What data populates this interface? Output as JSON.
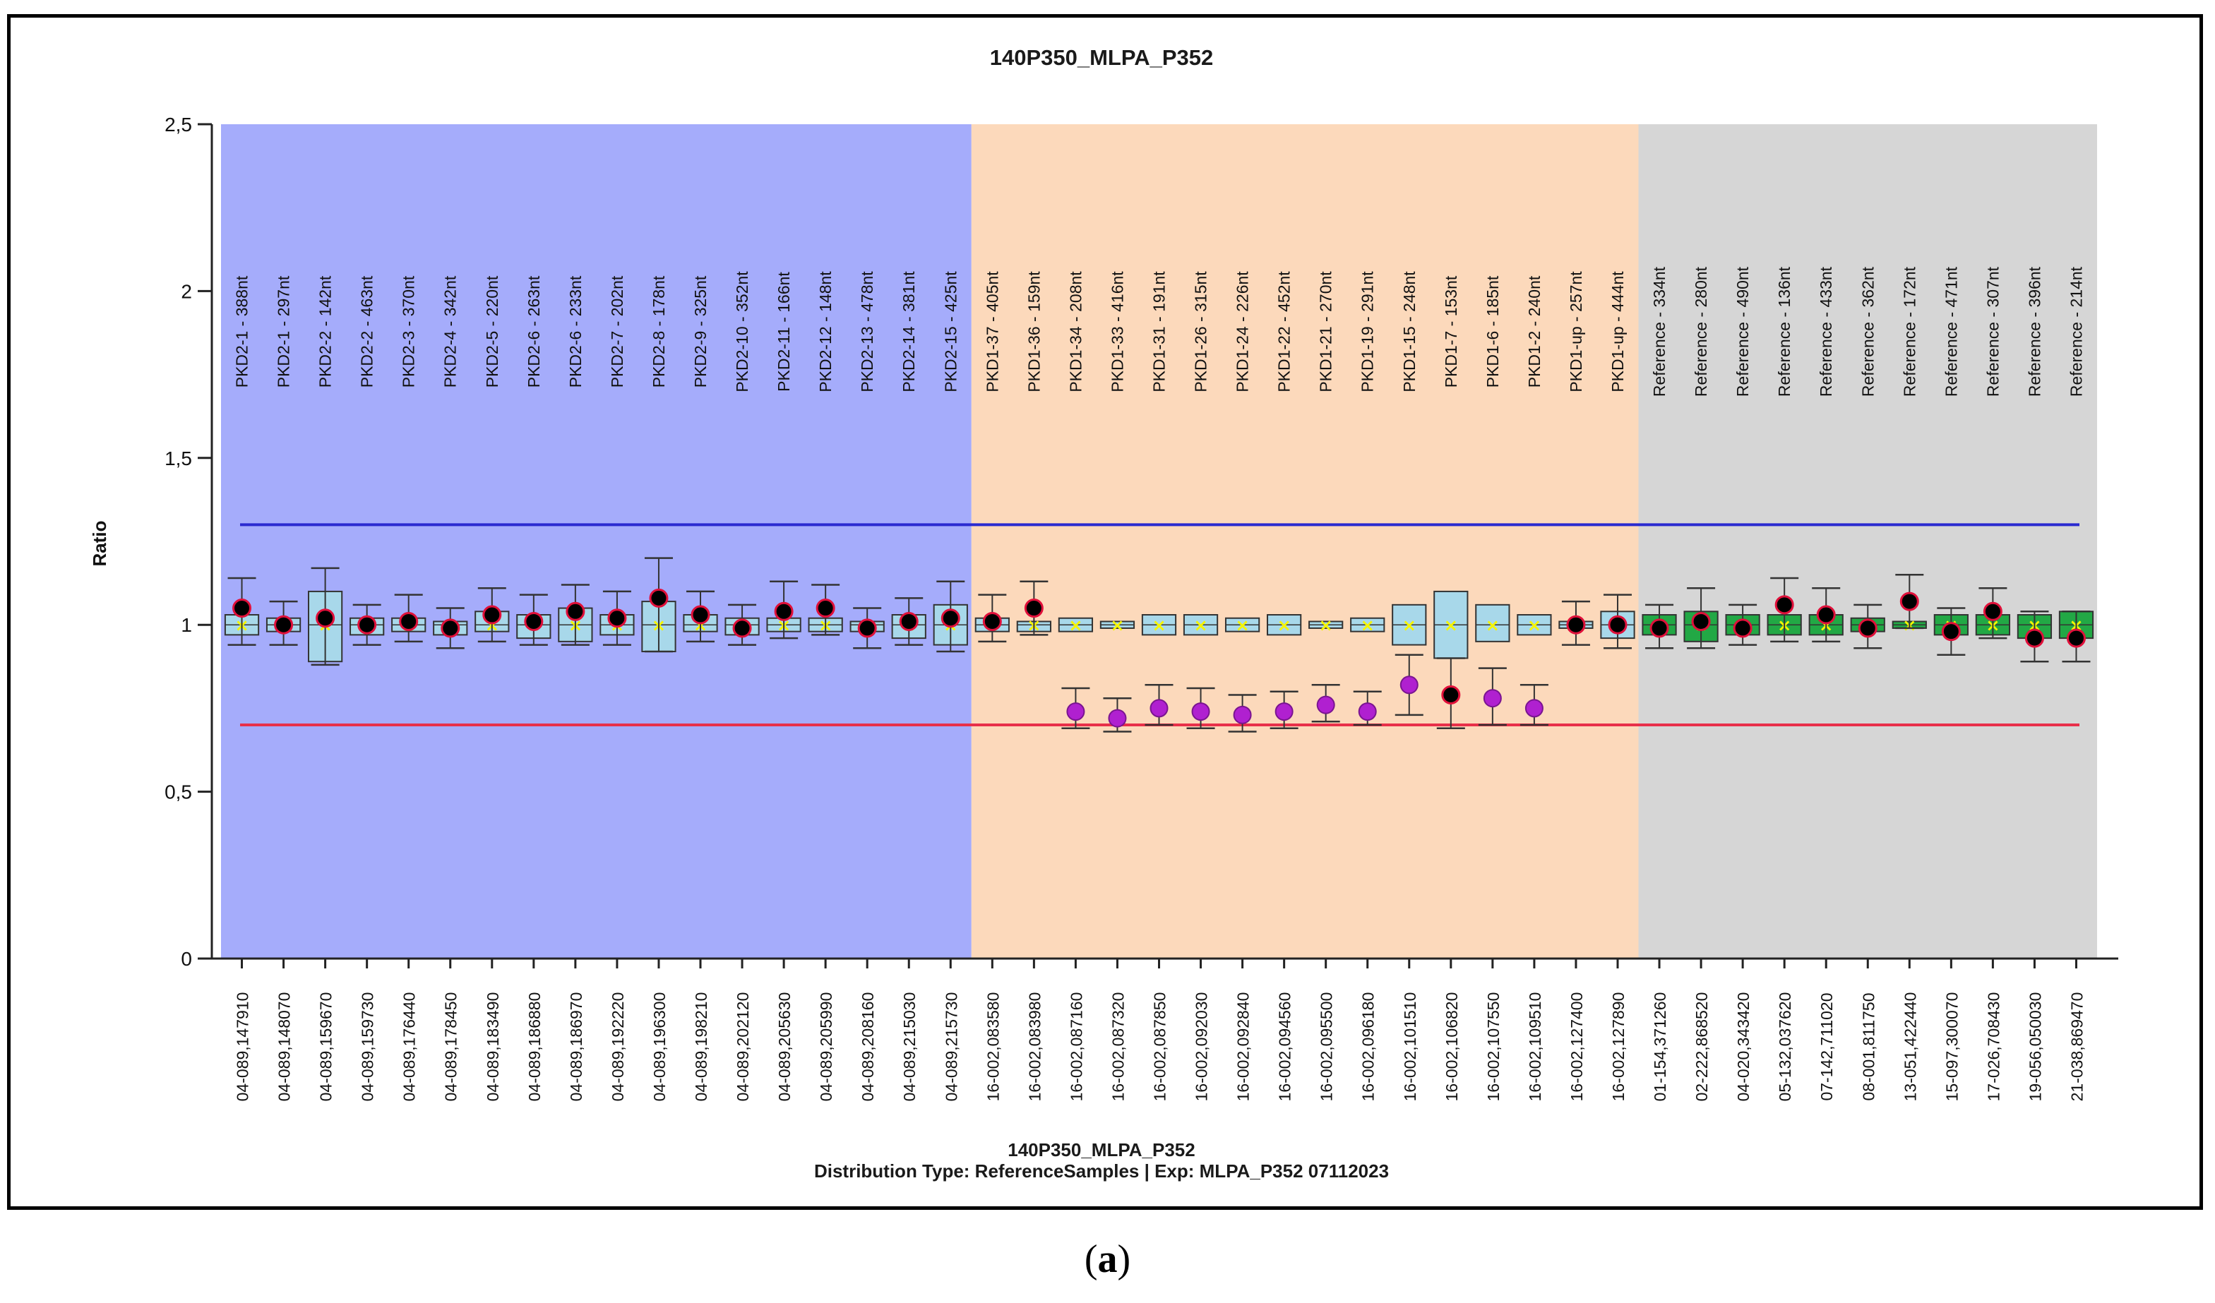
{
  "caption": {
    "open": "(",
    "letter": "a",
    "close": ")"
  },
  "chart_data": {
    "type": "box",
    "title": "140P350_MLPA_P352",
    "ylabel": "Ratio",
    "xlabel": "",
    "ylim": [
      0,
      2.5
    ],
    "yticks": [
      {
        "value": 0,
        "label": "0"
      },
      {
        "value": 0.5,
        "label": "0,5"
      },
      {
        "value": 1,
        "label": "1"
      },
      {
        "value": 1.5,
        "label": "1,5"
      },
      {
        "value": 2,
        "label": "2"
      },
      {
        "value": 2.5,
        "label": "2,5"
      }
    ],
    "upper_threshold": 1.3,
    "lower_threshold": 0.7,
    "footer": [
      "140P350_MLPA_P352",
      "Distribution Type: ReferenceSamples | Exp: MLPA_P352 07112023"
    ],
    "colors": {
      "pkd2_region": "#a5acfb",
      "pkd1_region": "#fcd9bb",
      "reference_region": "#d6d6d6",
      "box_fill": "#a8d8ea",
      "reference_box_fill": "#22a845",
      "upper_line": "#2a2ad0",
      "lower_line": "#e8304a",
      "normal_point": "#000000",
      "normal_point_ring": "#e0103a",
      "deleted_point": "#b020d0",
      "median_mark": "#f5f500"
    },
    "regions": [
      {
        "name": "PKD2",
        "start": 0,
        "end": 18
      },
      {
        "name": "PKD1",
        "start": 18,
        "end": 34
      },
      {
        "name": "Reference",
        "start": 34,
        "end": 45
      }
    ],
    "probes": [
      {
        "label": "PKD2-1 - 388nt",
        "locus": "04-089,147910",
        "q1": 0.97,
        "q3": 1.03,
        "wlo": 0.94,
        "whi": 1.14,
        "value": 1.05,
        "del": false
      },
      {
        "label": "PKD2-1 - 297nt",
        "locus": "04-089,148070",
        "q1": 0.98,
        "q3": 1.02,
        "wlo": 0.94,
        "whi": 1.07,
        "value": 1.0,
        "del": false
      },
      {
        "label": "PKD2-2 - 142nt",
        "locus": "04-089,159670",
        "q1": 0.89,
        "q3": 1.1,
        "wlo": 0.88,
        "whi": 1.17,
        "value": 1.02,
        "del": false
      },
      {
        "label": "PKD2-2 - 463nt",
        "locus": "04-089,159730",
        "q1": 0.97,
        "q3": 1.02,
        "wlo": 0.94,
        "whi": 1.06,
        "value": 1.0,
        "del": false
      },
      {
        "label": "PKD2-3 - 370nt",
        "locus": "04-089,176440",
        "q1": 0.98,
        "q3": 1.02,
        "wlo": 0.95,
        "whi": 1.09,
        "value": 1.01,
        "del": false
      },
      {
        "label": "PKD2-4 - 342nt",
        "locus": "04-089,178450",
        "q1": 0.97,
        "q3": 1.01,
        "wlo": 0.93,
        "whi": 1.05,
        "value": 0.99,
        "del": false
      },
      {
        "label": "PKD2-5 - 220nt",
        "locus": "04-089,183490",
        "q1": 0.98,
        "q3": 1.04,
        "wlo": 0.95,
        "whi": 1.11,
        "value": 1.03,
        "del": false
      },
      {
        "label": "PKD2-6 - 263nt",
        "locus": "04-089,186880",
        "q1": 0.96,
        "q3": 1.03,
        "wlo": 0.94,
        "whi": 1.09,
        "value": 1.01,
        "del": false
      },
      {
        "label": "PKD2-6 - 233nt",
        "locus": "04-089,186970",
        "q1": 0.95,
        "q3": 1.05,
        "wlo": 0.94,
        "whi": 1.12,
        "value": 1.04,
        "del": false
      },
      {
        "label": "PKD2-7 - 202nt",
        "locus": "04-089,192220",
        "q1": 0.97,
        "q3": 1.03,
        "wlo": 0.94,
        "whi": 1.1,
        "value": 1.02,
        "del": false
      },
      {
        "label": "PKD2-8 - 178nt",
        "locus": "04-089,196300",
        "q1": 0.92,
        "q3": 1.07,
        "wlo": 0.92,
        "whi": 1.2,
        "value": 1.08,
        "del": false
      },
      {
        "label": "PKD2-9 - 325nt",
        "locus": "04-089,198210",
        "q1": 0.98,
        "q3": 1.03,
        "wlo": 0.95,
        "whi": 1.1,
        "value": 1.03,
        "del": false
      },
      {
        "label": "PKD2-10 - 352nt",
        "locus": "04-089,202120",
        "q1": 0.97,
        "q3": 1.02,
        "wlo": 0.94,
        "whi": 1.06,
        "value": 0.99,
        "del": false
      },
      {
        "label": "PKD2-11 - 166nt",
        "locus": "04-089,205630",
        "q1": 0.98,
        "q3": 1.02,
        "wlo": 0.96,
        "whi": 1.13,
        "value": 1.04,
        "del": false
      },
      {
        "label": "PKD2-12 - 148nt",
        "locus": "04-089,205990",
        "q1": 0.98,
        "q3": 1.02,
        "wlo": 0.97,
        "whi": 1.12,
        "value": 1.05,
        "del": false
      },
      {
        "label": "PKD2-13 - 478nt",
        "locus": "04-089,208160",
        "q1": 0.98,
        "q3": 1.01,
        "wlo": 0.93,
        "whi": 1.05,
        "value": 0.99,
        "del": false
      },
      {
        "label": "PKD2-14 - 381nt",
        "locus": "04-089,215030",
        "q1": 0.96,
        "q3": 1.03,
        "wlo": 0.94,
        "whi": 1.08,
        "value": 1.01,
        "del": false
      },
      {
        "label": "PKD2-15 - 425nt",
        "locus": "04-089,215730",
        "q1": 0.94,
        "q3": 1.06,
        "wlo": 0.92,
        "whi": 1.13,
        "value": 1.02,
        "del": false
      },
      {
        "label": "PKD1-37 - 405nt",
        "locus": "16-002,083580",
        "q1": 0.98,
        "q3": 1.02,
        "wlo": 0.95,
        "whi": 1.09,
        "value": 1.01,
        "del": false
      },
      {
        "label": "PKD1-36 - 159nt",
        "locus": "16-002,083980",
        "q1": 0.98,
        "q3": 1.01,
        "wlo": 0.97,
        "whi": 1.13,
        "value": 1.05,
        "del": false
      },
      {
        "label": "PKD1-34 - 208nt",
        "locus": "16-002,087160",
        "q1": 0.98,
        "q3": 1.02,
        "wlo": 0.69,
        "whi": 0.81,
        "value": 0.74,
        "del": true
      },
      {
        "label": "PKD1-33 - 416nt",
        "locus": "16-002,087320",
        "q1": 0.99,
        "q3": 1.01,
        "wlo": 0.68,
        "whi": 0.78,
        "value": 0.72,
        "del": true
      },
      {
        "label": "PKD1-31 - 191nt",
        "locus": "16-002,087850",
        "q1": 0.97,
        "q3": 1.03,
        "wlo": 0.7,
        "whi": 0.82,
        "value": 0.75,
        "del": true
      },
      {
        "label": "PKD1-26 - 315nt",
        "locus": "16-002,092030",
        "q1": 0.97,
        "q3": 1.03,
        "wlo": 0.69,
        "whi": 0.81,
        "value": 0.74,
        "del": true
      },
      {
        "label": "PKD1-24 - 226nt",
        "locus": "16-002,092840",
        "q1": 0.98,
        "q3": 1.02,
        "wlo": 0.68,
        "whi": 0.79,
        "value": 0.73,
        "del": true
      },
      {
        "label": "PKD1-22 - 452nt",
        "locus": "16-002,094560",
        "q1": 0.97,
        "q3": 1.03,
        "wlo": 0.69,
        "whi": 0.8,
        "value": 0.74,
        "del": true
      },
      {
        "label": "PKD1-21 - 270nt",
        "locus": "16-002,095500",
        "q1": 0.99,
        "q3": 1.01,
        "wlo": 0.71,
        "whi": 0.82,
        "value": 0.76,
        "del": true
      },
      {
        "label": "PKD1-19 - 291nt",
        "locus": "16-002,096180",
        "q1": 0.98,
        "q3": 1.02,
        "wlo": 0.7,
        "whi": 0.8,
        "value": 0.74,
        "del": true
      },
      {
        "label": "PKD1-15 - 248nt",
        "locus": "16-002,101510",
        "q1": 0.94,
        "q3": 1.06,
        "wlo": 0.73,
        "whi": 0.91,
        "value": 0.82,
        "del": true
      },
      {
        "label": "PKD1-7 - 153nt",
        "locus": "16-002,106820",
        "q1": 0.9,
        "q3": 1.1,
        "wlo": 0.69,
        "whi": 0.9,
        "value": 0.79,
        "del": false
      },
      {
        "label": "PKD1-6 - 185nt",
        "locus": "16-002,107550",
        "q1": 0.95,
        "q3": 1.06,
        "wlo": 0.7,
        "whi": 0.87,
        "value": 0.78,
        "del": true
      },
      {
        "label": "PKD1-2 - 240nt",
        "locus": "16-002,109510",
        "q1": 0.97,
        "q3": 1.03,
        "wlo": 0.7,
        "whi": 0.82,
        "value": 0.75,
        "del": true
      },
      {
        "label": "PKD1-up - 257nt",
        "locus": "16-002,127400",
        "q1": 0.99,
        "q3": 1.01,
        "wlo": 0.94,
        "whi": 1.07,
        "value": 1.0,
        "del": false
      },
      {
        "label": "PKD1-up - 444nt",
        "locus": "16-002,127890",
        "q1": 0.96,
        "q3": 1.04,
        "wlo": 0.93,
        "whi": 1.09,
        "value": 1.0,
        "del": false
      },
      {
        "label": "Reference - 334nt",
        "locus": "01-154,371260",
        "q1": 0.97,
        "q3": 1.03,
        "wlo": 0.93,
        "whi": 1.06,
        "value": 0.99,
        "del": false
      },
      {
        "label": "Reference - 280nt",
        "locus": "02-222,868520",
        "q1": 0.95,
        "q3": 1.04,
        "wlo": 0.93,
        "whi": 1.11,
        "value": 1.01,
        "del": false
      },
      {
        "label": "Reference - 490nt",
        "locus": "04-020,343420",
        "q1": 0.97,
        "q3": 1.03,
        "wlo": 0.94,
        "whi": 1.06,
        "value": 0.99,
        "del": false
      },
      {
        "label": "Reference - 136nt",
        "locus": "05-132,037620",
        "q1": 0.97,
        "q3": 1.03,
        "wlo": 0.95,
        "whi": 1.14,
        "value": 1.06,
        "del": false
      },
      {
        "label": "Reference - 433nt",
        "locus": "07-142,711020",
        "q1": 0.97,
        "q3": 1.03,
        "wlo": 0.95,
        "whi": 1.11,
        "value": 1.03,
        "del": false
      },
      {
        "label": "Reference - 362nt",
        "locus": "08-001,811750",
        "q1": 0.98,
        "q3": 1.02,
        "wlo": 0.93,
        "whi": 1.06,
        "value": 0.99,
        "del": false
      },
      {
        "label": "Reference - 172nt",
        "locus": "13-051,422440",
        "q1": 0.99,
        "q3": 1.01,
        "wlo": 0.99,
        "whi": 1.15,
        "value": 1.07,
        "del": false
      },
      {
        "label": "Reference - 471nt",
        "locus": "15-097,300070",
        "q1": 0.97,
        "q3": 1.03,
        "wlo": 0.91,
        "whi": 1.05,
        "value": 0.98,
        "del": false
      },
      {
        "label": "Reference - 307nt",
        "locus": "17-026,708430",
        "q1": 0.97,
        "q3": 1.03,
        "wlo": 0.96,
        "whi": 1.11,
        "value": 1.04,
        "del": false
      },
      {
        "label": "Reference - 396nt",
        "locus": "19-056,050030",
        "q1": 0.96,
        "q3": 1.03,
        "wlo": 0.89,
        "whi": 1.04,
        "value": 0.96,
        "del": false
      },
      {
        "label": "Reference - 214nt",
        "locus": "21-038,869470",
        "q1": 0.96,
        "q3": 1.04,
        "wlo": 0.89,
        "whi": 1.04,
        "value": 0.96,
        "del": false
      }
    ]
  }
}
